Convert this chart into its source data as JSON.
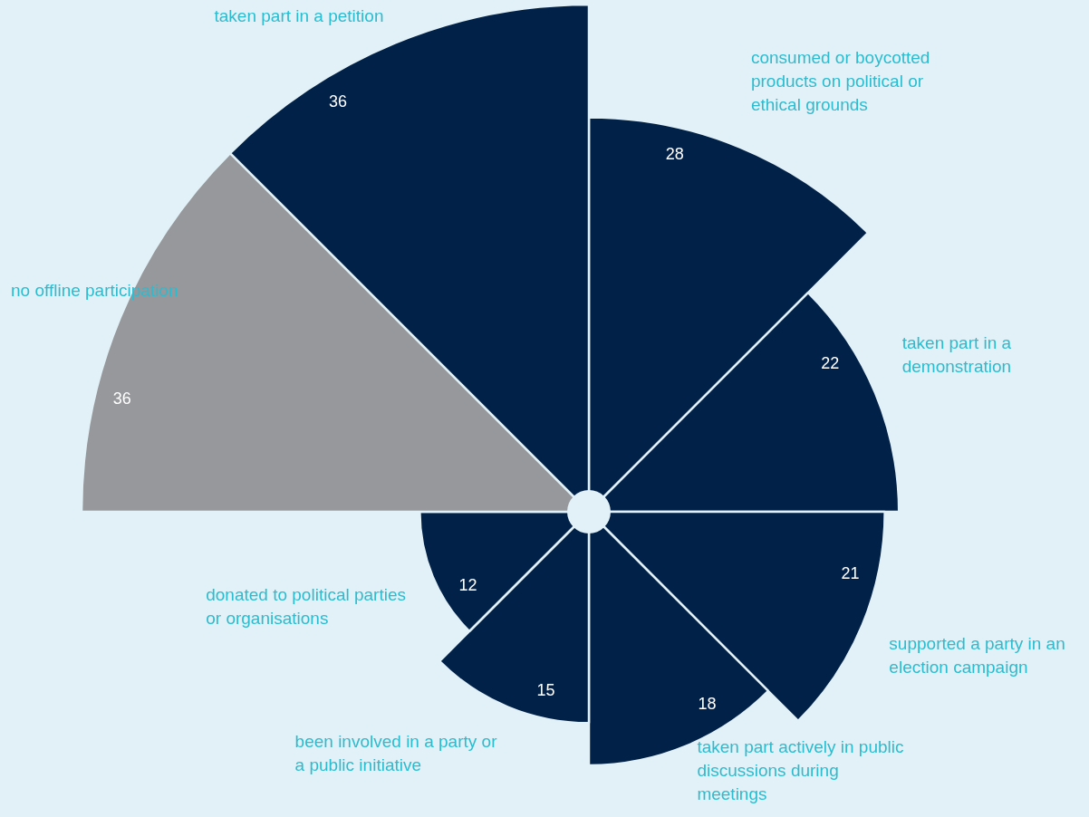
{
  "chart_data": {
    "type": "other",
    "categories": [
      "consumed or boycotted products on political or ethical grounds",
      "taken part in a demonstration",
      "supported a party in an election campaign",
      "taken part actively in public discussions during meetings",
      "been involved in a party or a public initiative",
      "donated to political parties or organisations",
      "no offline participation",
      "taken part in a petition"
    ],
    "values": [
      28,
      22,
      21,
      18,
      15,
      12,
      36,
      36
    ],
    "colors": [
      "#012148",
      "#012148",
      "#012148",
      "#012148",
      "#012148",
      "#012148",
      "#97989c",
      "#012148"
    ],
    "data_labels": true
  }
}
